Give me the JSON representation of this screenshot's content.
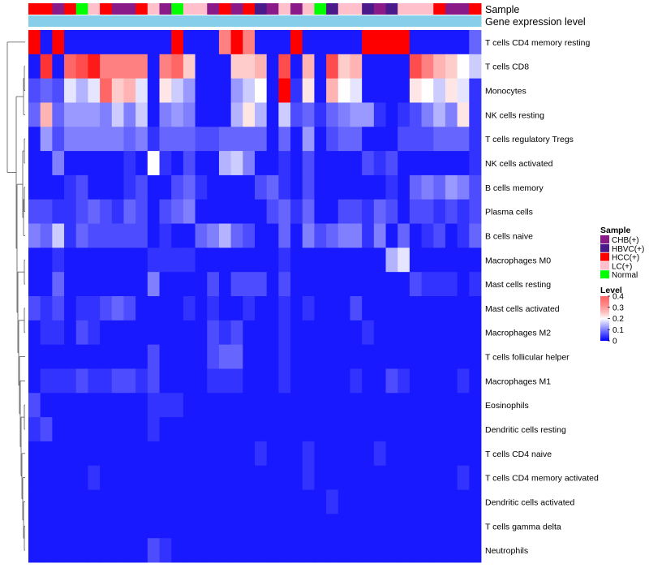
{
  "chart_data": {
    "type": "heatmap",
    "annotation_rows": [
      "Sample",
      "Gene expression level"
    ],
    "rows": [
      "T cells CD4 memory resting",
      "T cells CD8",
      "Monocytes",
      "NK cells resting",
      "T cells regulatory  Tregs",
      "NK cells activated",
      "B cells memory",
      "Plasma cells",
      "B cells naive",
      "Macrophages M0",
      "Mast cells resting",
      "Mast cells activated",
      "Macrophages M2",
      "T cells follicular helper",
      "Macrophages M1",
      "Eosinophils",
      "Dendritic cells resting",
      "T cells CD4 naive",
      "T cells CD4 memory activated",
      "Dendritic cells activated",
      "T cells gamma delta",
      "Neutrophils"
    ],
    "samples": [
      "HCC(+)",
      "HCC(+)",
      "CHB(+)",
      "HCC(+)",
      "Normal",
      "LC(+)",
      "HCC(+)",
      "CHB(+)",
      "CHB(+)",
      "HCC(+)",
      "LC(+)",
      "CHB(+)",
      "Normal",
      "LC(+)",
      "LC(+)",
      "CHB(+)",
      "HCC(+)",
      "CHB(+)",
      "HCC(+)",
      "HBVC(+)",
      "CHB(+)",
      "LC(+)",
      "CHB(+)",
      "LC(+)",
      "Normal",
      "HBVC(+)",
      "LC(+)",
      "LC(+)",
      "HBVC(+)",
      "CHB(+)",
      "HBVC(+)",
      "LC(+)",
      "LC(+)",
      "LC(+)",
      "HCC(+)",
      "CHB(+)",
      "CHB(+)",
      "HCC(+)"
    ],
    "gene_expression_annotation": [
      "0.18",
      "0.18",
      "0.18",
      "0.18",
      "0.18",
      "0.18",
      "0.18",
      "0.18",
      "0.18",
      "0.18",
      "0.18",
      "0.18",
      "0.18",
      "0.18",
      "0.18",
      "0.18",
      "0.18",
      "0.18",
      "0.18",
      "0.18",
      "0.18",
      "0.18",
      "0.18",
      "0.18",
      "0.18",
      "0.18",
      "0.18",
      "0.18",
      "0.18",
      "0.18",
      "0.18",
      "0.18",
      "0.18",
      "0.18",
      "0.18",
      "0.18",
      "0.18",
      "0.18"
    ],
    "values": [
      "0.40 0.02 0.40 0.02 0.02 0.02 0.02 0.02 0.02 0.02 0.02 0.02 0.40 0.02 0.02 0.02 0.30 0.40 0.30 0.02 0.02 0.02 0.40 0.02 0.02 0.02 0.02 0.02 0.40 0.40 0.40 0.40 0.02 0.02 0.02 0.02 0.02 0.08",
      "0.02 0.36 0.02 0.32 0.34 0.38 0.30 0.30 0.30 0.30 0.02 0.30 0.32 0.24 0.02 0.02 0.02 0.24 0.24 0.26 0.02 0.34 0.02 0.26 0.02 0.34 0.24 0.26 0.02 0.02 0.02 0.02 0.34 0.30 0.26 0.24 0.20 0.16",
      "0.06 0.08 0.06 0.18 0.14 0.18 0.32 0.24 0.26 0.18 0.02 0.22 0.16 0.12 0.02 0.02 0.02 0.12 0.16 0.20 0.02 0.40 0.04 0.22 0.02 0.26 0.20 0.18 0.02 0.02 0.02 0.02 0.22 0.20 0.16 0.22 0.18 0.04",
      "0.08 0.26 0.08 0.12 0.12 0.12 0.10 0.16 0.10 0.16 0.02 0.10 0.12 0.10 0.02 0.02 0.02 0.14 0.22 0.14 0.02 0.16 0.06 0.08 0.04 0.08 0.10 0.12 0.12 0.04 0.02 0.04 0.06 0.10 0.14 0.10 0.22 0.04",
      "0.02 0.12 0.06 0.10 0.10 0.10 0.10 0.10 0.08 0.10 0.04 0.08 0.08 0.08 0.06 0.06 0.08 0.08 0.08 0.08 0.02 0.08 0.02 0.12 0.02 0.06 0.08 0.08 0.02 0.02 0.02 0.06 0.06 0.06 0.08 0.08 0.08 0.04",
      "0.02 0.02 0.10 0.02 0.02 0.02 0.02 0.02 0.04 0.02 0.20 0.04 0.02 0.06 0.02 0.02 0.14 0.16 0.10 0.02 0.02 0.04 0.02 0.06 0.02 0.02 0.02 0.02 0.06 0.04 0.06 0.02 0.02 0.02 0.02 0.02 0.02 0.04",
      "0.02 0.02 0.02 0.04 0.06 0.02 0.02 0.02 0.04 0.06 0.02 0.02 0.06 0.08 0.04 0.02 0.02 0.02 0.02 0.06 0.08 0.04 0.02 0.06 0.02 0.02 0.02 0.02 0.02 0.02 0.04 0.02 0.08 0.10 0.08 0.12 0.10 0.06",
      "0.06 0.06 0.04 0.04 0.06 0.08 0.06 0.04 0.08 0.06 0.02 0.06 0.08 0.10 0.02 0.02 0.02 0.02 0.02 0.02 0.06 0.08 0.04 0.08 0.02 0.02 0.06 0.06 0.04 0.08 0.06 0.02 0.06 0.06 0.04 0.06 0.04 0.06",
      "0.10 0.08 0.16 0.04 0.08 0.06 0.06 0.06 0.06 0.06 0.02 0.04 0.02 0.02 0.08 0.10 0.14 0.08 0.06 0.02 0.02 0.08 0.02 0.10 0.06 0.08 0.10 0.10 0.04 0.10 0.02 0.08 0.02 0.04 0.06 0.02 0.04 0.08",
      "0.02 0.02 0.04 0.02 0.02 0.02 0.02 0.02 0.02 0.02 0.04 0.04 0.04 0.04 0.02 0.02 0.02 0.02 0.02 0.02 0.02 0.04 0.02 0.02 0.02 0.02 0.02 0.02 0.02 0.02 0.14 0.18 0.02 0.02 0.02 0.02 0.02 0.02",
      "0.02 0.02 0.08 0.02 0.02 0.02 0.02 0.02 0.02 0.02 0.10 0.02 0.02 0.02 0.02 0.06 0.02 0.06 0.06 0.06 0.02 0.06 0.02 0.02 0.02 0.02 0.02 0.02 0.02 0.02 0.02 0.02 0.06 0.04 0.04 0.04 0.02 0.04",
      "0.06 0.04 0.06 0.02 0.04 0.04 0.06 0.08 0.06 0.02 0.02 0.02 0.02 0.04 0.02 0.04 0.02 0.02 0.04 0.02 0.02 0.04 0.02 0.04 0.02 0.02 0.02 0.06 0.02 0.02 0.02 0.02 0.02 0.02 0.02 0.02 0.02 0.02",
      "0.02 0.04 0.04 0.02 0.06 0.04 0.02 0.02 0.02 0.02 0.02 0.02 0.02 0.02 0.02 0.06 0.04 0.06 0.02 0.02 0.02 0.04 0.02 0.02 0.02 0.02 0.02 0.02 0.04 0.02 0.02 0.02 0.02 0.02 0.02 0.02 0.02 0.02",
      "0.02 0.02 0.02 0.02 0.02 0.02 0.02 0.02 0.02 0.02 0.06 0.02 0.02 0.02 0.02 0.06 0.08 0.08 0.02 0.02 0.02 0.04 0.02 0.02 0.02 0.02 0.02 0.02 0.02 0.02 0.02 0.02 0.02 0.02 0.02 0.02 0.02 0.02",
      "0.02 0.04 0.04 0.04 0.06 0.04 0.04 0.06 0.06 0.04 0.06 0.02 0.02 0.02 0.02 0.04 0.04 0.04 0.02 0.02 0.02 0.04 0.02 0.02 0.02 0.02 0.02 0.04 0.02 0.02 0.06 0.04 0.02 0.02 0.02 0.02 0.04 0.02",
      "0.06 0.02 0.02 0.02 0.02 0.02 0.02 0.02 0.02 0.02 0.04 0.04 0.04 0.02 0.02 0.02 0.02 0.02 0.02 0.02 0.02 0.02 0.02 0.02 0.02 0.02 0.02 0.02 0.02 0.02 0.02 0.02 0.02 0.02 0.02 0.02 0.02 0.02",
      "0.04 0.06 0.02 0.02 0.02 0.02 0.02 0.02 0.02 0.02 0.04 0.02 0.02 0.02 0.02 0.02 0.02 0.02 0.02 0.02 0.02 0.02 0.02 0.02 0.02 0.02 0.02 0.02 0.02 0.02 0.02 0.02 0.02 0.02 0.02 0.02 0.02 0.02",
      "0.02 0.02 0.02 0.02 0.02 0.02 0.02 0.02 0.02 0.02 0.02 0.02 0.02 0.02 0.02 0.02 0.02 0.02 0.02 0.04 0.02 0.02 0.02 0.04 0.02 0.02 0.02 0.02 0.02 0.04 0.02 0.02 0.02 0.02 0.02 0.02 0.02 0.02",
      "0.02 0.02 0.02 0.02 0.02 0.04 0.02 0.02 0.02 0.02 0.02 0.02 0.02 0.02 0.02 0.02 0.02 0.02 0.02 0.02 0.02 0.02 0.02 0.04 0.02 0.02 0.02 0.02 0.02 0.02 0.02 0.02 0.02 0.02 0.02 0.02 0.04 0.02",
      "0.02 0.02 0.02 0.02 0.02 0.02 0.02 0.02 0.02 0.02 0.02 0.02 0.02 0.02 0.02 0.02 0.02 0.02 0.02 0.02 0.02 0.02 0.02 0.02 0.02 0.04 0.02 0.02 0.02 0.02 0.02 0.02 0.02 0.02 0.02 0.02 0.02 0.02",
      "0.02 0.02 0.02 0.02 0.02 0.02 0.02 0.02 0.02 0.02 0.02 0.02 0.02 0.02 0.02 0.02 0.02 0.02 0.02 0.02 0.02 0.02 0.02 0.02 0.02 0.02 0.02 0.02 0.02 0.02 0.02 0.02 0.02 0.02 0.02 0.02 0.02 0.02",
      "0.02 0.02 0.02 0.02 0.02 0.02 0.02 0.02 0.02 0.02 0.06 0.04 0.02 0.02 0.02 0.02 0.02 0.02 0.02 0.02 0.02 0.02 0.02 0.02 0.02 0.02 0.02 0.02 0.02 0.02 0.02 0.02 0.02 0.02 0.02 0.02 0.02 0.02"
    ],
    "color_scale": {
      "min": 0,
      "mid": 0.2,
      "max": 0.4,
      "low": "#0000ff",
      "mid_color": "#ffffff",
      "high": "#ff0000"
    },
    "legend_sample": {
      "title": "Sample",
      "entries": [
        {
          "label": "CHB(+)",
          "color": "#8b1a89"
        },
        {
          "label": "HBVC(+)",
          "color": "#4b1a8a"
        },
        {
          "label": "HCC(+)",
          "color": "#ff0000"
        },
        {
          "label": "LC(+)",
          "color": "#ffc0cb"
        },
        {
          "label": "Normal",
          "color": "#00ff00"
        }
      ]
    },
    "legend_level": {
      "title": "Level",
      "ticks": [
        "0.4",
        "0.3",
        "0.2",
        "0.1",
        "0"
      ],
      "tick_values": [
        0.4,
        0.3,
        0.2,
        0.1,
        0
      ]
    },
    "gene_expression_color": "#87ceeb"
  }
}
